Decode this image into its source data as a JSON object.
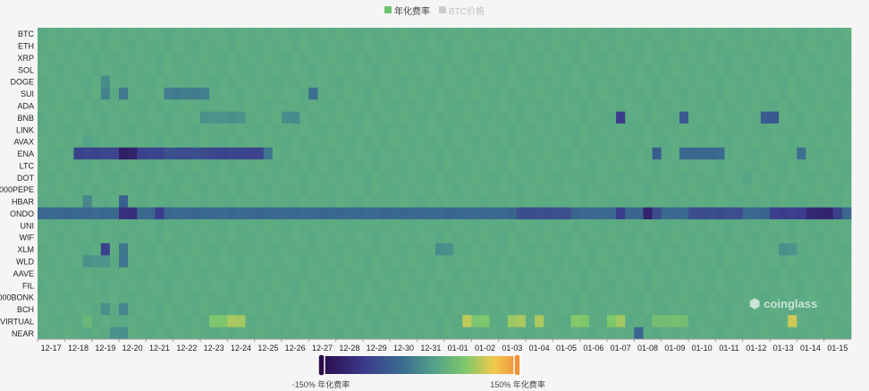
{
  "legend": {
    "items": [
      {
        "label": "年化费率",
        "color": "#6cc26f",
        "active": true
      },
      {
        "label": "BTC价格",
        "color": "#cccccc",
        "active": false
      }
    ]
  },
  "watermark": {
    "text": "coinglass",
    "icon": "coinglass-logo-icon"
  },
  "visual_map": {
    "min_label": "-150% 年化费率",
    "max_label": "150% 年化费率",
    "min": -150,
    "max": 150,
    "range_selected": [
      -150,
      150
    ],
    "colors": [
      "#2a0a48",
      "#3b3a8c",
      "#3a6d8f",
      "#53a489",
      "#82c86a",
      "#f2c94c",
      "#f0913a"
    ]
  },
  "chart_data": {
    "type": "heatmap",
    "title": "",
    "value_unit": "年化费率 (%)",
    "y_categories": [
      "BTC",
      "ETH",
      "XRP",
      "SOL",
      "DOGE",
      "SUI",
      "ADA",
      "BNB",
      "LINK",
      "AVAX",
      "ENA",
      "LTC",
      "DOT",
      "000PEPE",
      "HBAR",
      "ONDO",
      "UNI",
      "WIF",
      "XLM",
      "WLD",
      "AAVE",
      "FIL",
      "000BONK",
      "BCH",
      "VIRTUAL",
      "NEAR"
    ],
    "x_ticks": [
      "12-17",
      "12-18",
      "12-19",
      "12-20",
      "12-21",
      "12-22",
      "12-23",
      "12-24",
      "12-25",
      "12-26",
      "12-27",
      "12-28",
      "12-29",
      "12-30",
      "12-31",
      "01-01",
      "01-02",
      "01-03",
      "01-04",
      "01-05",
      "01-06",
      "01-07",
      "01-08",
      "01-09",
      "01-10",
      "01-11",
      "01-12",
      "01-13",
      "01-14",
      "01-15"
    ],
    "periods_per_day": 3,
    "baseline_value": 10,
    "cells": [
      {
        "row": "ENA",
        "from": 4,
        "to": 25,
        "value": -90
      },
      {
        "row": "ENA",
        "from": 9,
        "to": 11,
        "value": -125
      },
      {
        "row": "ENA",
        "from": 14,
        "to": 19,
        "value": -80
      },
      {
        "row": "ENA",
        "from": 25,
        "to": 26,
        "value": -40
      },
      {
        "row": "ENA",
        "from": 68,
        "to": 69,
        "value": -70
      },
      {
        "row": "ENA",
        "from": 71,
        "to": 76,
        "value": -55
      },
      {
        "row": "ENA",
        "from": 84,
        "to": 85,
        "value": -50
      },
      {
        "row": "ONDO",
        "from": 0,
        "to": 90,
        "value": -55
      },
      {
        "row": "ONDO",
        "from": 9,
        "to": 11,
        "value": -110
      },
      {
        "row": "ONDO",
        "from": 13,
        "to": 14,
        "value": -100
      },
      {
        "row": "ONDO",
        "from": 53,
        "to": 59,
        "value": -80
      },
      {
        "row": "ONDO",
        "from": 64,
        "to": 65,
        "value": -100
      },
      {
        "row": "ONDO",
        "from": 67,
        "to": 68,
        "value": -125
      },
      {
        "row": "ONDO",
        "from": 68,
        "to": 69,
        "value": -80
      },
      {
        "row": "ONDO",
        "from": 72,
        "to": 78,
        "value": -80
      },
      {
        "row": "ONDO",
        "from": 81,
        "to": 89,
        "value": -95
      },
      {
        "row": "ONDO",
        "from": 85,
        "to": 88,
        "value": -120
      },
      {
        "row": "BNB",
        "from": 64,
        "to": 65,
        "value": -100
      },
      {
        "row": "BNB",
        "from": 71,
        "to": 72,
        "value": -70
      },
      {
        "row": "BNB",
        "from": 80,
        "to": 82,
        "value": -70
      },
      {
        "row": "BNB",
        "from": 18,
        "to": 23,
        "value": -15
      },
      {
        "row": "BNB",
        "from": 27,
        "to": 29,
        "value": -20
      },
      {
        "row": "SUI",
        "from": 7,
        "to": 8,
        "value": -30
      },
      {
        "row": "SUI",
        "from": 9,
        "to": 10,
        "value": -40
      },
      {
        "row": "SUI",
        "from": 14,
        "to": 19,
        "value": -35
      },
      {
        "row": "SUI",
        "from": 30,
        "to": 31,
        "value": -50
      },
      {
        "row": "XLM",
        "from": 7,
        "to": 8,
        "value": -90
      },
      {
        "row": "XLM",
        "from": 9,
        "to": 10,
        "value": -40
      },
      {
        "row": "XLM",
        "from": 44,
        "to": 46,
        "value": -20
      },
      {
        "row": "XLM",
        "from": 82,
        "to": 84,
        "value": -15
      },
      {
        "row": "WLD",
        "from": 9,
        "to": 10,
        "value": -45
      },
      {
        "row": "WLD",
        "from": 5,
        "to": 8,
        "value": -15
      },
      {
        "row": "HBAR",
        "from": 9,
        "to": 10,
        "value": -60
      },
      {
        "row": "HBAR",
        "from": 5,
        "to": 6,
        "value": -30
      },
      {
        "row": "DOGE",
        "from": 7,
        "to": 8,
        "value": -20
      },
      {
        "row": "BCH",
        "from": 7,
        "to": 8,
        "value": -20
      },
      {
        "row": "BCH",
        "from": 9,
        "to": 10,
        "value": -30
      },
      {
        "row": "NEAR",
        "from": 66,
        "to": 67,
        "value": -60
      },
      {
        "row": "NEAR",
        "from": 8,
        "to": 10,
        "value": -20
      },
      {
        "row": "VIRTUAL",
        "from": 19,
        "to": 23,
        "value": 45
      },
      {
        "row": "VIRTUAL",
        "from": 21,
        "to": 23,
        "value": 65
      },
      {
        "row": "VIRTUAL",
        "from": 47,
        "to": 48,
        "value": 75
      },
      {
        "row": "VIRTUAL",
        "from": 48,
        "to": 50,
        "value": 45
      },
      {
        "row": "VIRTUAL",
        "from": 52,
        "to": 53,
        "value": 60
      },
      {
        "row": "VIRTUAL",
        "from": 53,
        "to": 54,
        "value": 70
      },
      {
        "row": "VIRTUAL",
        "from": 55,
        "to": 56,
        "value": 70
      },
      {
        "row": "VIRTUAL",
        "from": 59,
        "to": 61,
        "value": 50
      },
      {
        "row": "VIRTUAL",
        "from": 63,
        "to": 64,
        "value": 45
      },
      {
        "row": "VIRTUAL",
        "from": 64,
        "to": 65,
        "value": 65
      },
      {
        "row": "VIRTUAL",
        "from": 68,
        "to": 72,
        "value": 35
      },
      {
        "row": "VIRTUAL",
        "from": 83,
        "to": 84,
        "value": 85
      },
      {
        "row": "VIRTUAL",
        "from": 5,
        "to": 6,
        "value": 25
      },
      {
        "row": "DOT",
        "from": 78,
        "to": 79,
        "value": 5
      },
      {
        "row": "AVAX",
        "from": 5,
        "to": 6,
        "value": 0
      }
    ]
  }
}
